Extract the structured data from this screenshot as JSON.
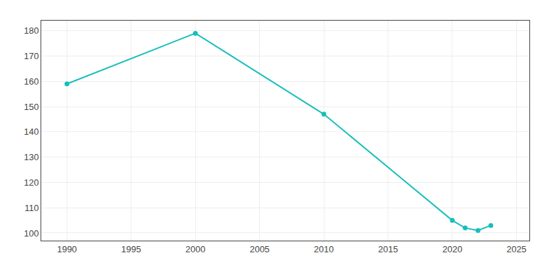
{
  "chart_data": {
    "type": "line",
    "x": [
      1990,
      2000,
      2010,
      2020,
      2021,
      2022,
      2023
    ],
    "values": [
      159,
      179,
      147,
      105,
      102,
      101,
      103
    ],
    "color": "#17bebb",
    "marker": "circle",
    "line_style": "solid",
    "xlim": [
      1988,
      2026
    ],
    "ylim": [
      97,
      184
    ],
    "xticks": [
      1990,
      1995,
      2000,
      2005,
      2010,
      2015,
      2020,
      2025
    ],
    "yticks": [
      100,
      110,
      120,
      130,
      140,
      150,
      160,
      170,
      180
    ],
    "grid": true
  }
}
